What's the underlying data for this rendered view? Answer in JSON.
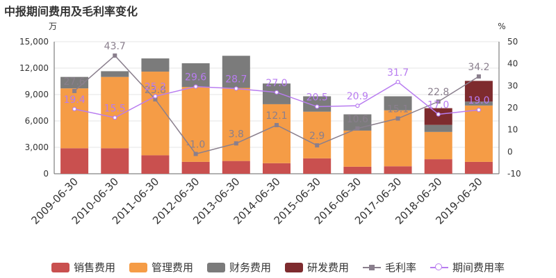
{
  "title": "中报期间费用及毛利率变化",
  "chart_data": {
    "type": "bar",
    "categories": [
      "2009-06-30",
      "2010-06-30",
      "2011-06-30",
      "2012-06-30",
      "2013-06-30",
      "2014-06-30",
      "2015-06-30",
      "2016-06-30",
      "2017-06-30",
      "2018-06-30",
      "2019-06-30"
    ],
    "y_left": {
      "unit": "万",
      "min": 0,
      "max": 15000,
      "ticks": [
        "0",
        "3,000",
        "6,000",
        "9,000",
        "12,000",
        "15,000"
      ]
    },
    "y_right": {
      "unit": "%",
      "min": -10,
      "max": 50,
      "ticks": [
        "-10",
        "0",
        "10",
        "20",
        "30",
        "40",
        "50"
      ]
    },
    "grid": true,
    "legend_position": "bottom",
    "bar_series": [
      {
        "name": "销售费用",
        "color": "#c9504f",
        "values": [
          2900,
          2900,
          2100,
          1350,
          1450,
          1200,
          1750,
          800,
          850,
          1650,
          1350
        ]
      },
      {
        "name": "管理费用",
        "color": "#f59c46",
        "values": [
          6800,
          8100,
          9500,
          8500,
          8300,
          6700,
          5300,
          4100,
          6350,
          3100,
          6400
        ]
      },
      {
        "name": "财务费用",
        "color": "#7b7b7b",
        "values": [
          1300,
          650,
          1500,
          2700,
          3650,
          2350,
          1750,
          1850,
          1600,
          800,
          450
        ]
      },
      {
        "name": "研发费用",
        "color": "#7e2b2e",
        "values": [
          0,
          0,
          0,
          0,
          0,
          0,
          0,
          0,
          0,
          1900,
          2350
        ]
      }
    ],
    "line_series": [
      {
        "name": "毛利率",
        "color": "#8a7f8d",
        "marker": "square",
        "values": [
          27.6,
          43.7,
          23.8,
          -1.0,
          3.8,
          12.1,
          2.9,
          10.6,
          15.1,
          22.8,
          34.2
        ],
        "labels": [
          "27.6",
          "43.7",
          "23.8",
          "-1.0",
          "3.8",
          "12.1",
          "2.9",
          "10.6",
          "15.1",
          "22.8",
          "34.2"
        ]
      },
      {
        "name": "期间费用率",
        "color": "#b87cf0",
        "marker": "circle",
        "values": [
          19.4,
          15.5,
          25.2,
          29.6,
          28.7,
          27.0,
          20.5,
          20.9,
          31.7,
          17.0,
          19.0
        ],
        "labels": [
          "19.4",
          "15.5",
          "25.2",
          "29.6",
          "28.7",
          "27.0",
          "20.5",
          "20.9",
          "31.7",
          "17.0",
          "19.0"
        ]
      }
    ]
  }
}
